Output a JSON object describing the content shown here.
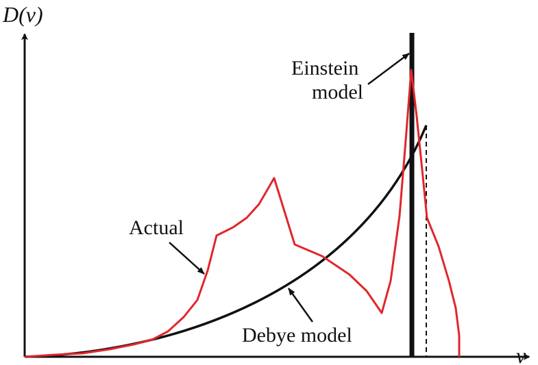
{
  "labels": {
    "y_axis": "D(ν)",
    "x_axis": "ν",
    "einstein_line1": "Einstein",
    "einstein_line2": "model",
    "actual": "Actual",
    "debye": "Debye model"
  },
  "colors": {
    "actual_curve": "#e0262b",
    "debye_curve": "#111111",
    "einstein_line": "#111111",
    "axes": "#111111"
  }
}
